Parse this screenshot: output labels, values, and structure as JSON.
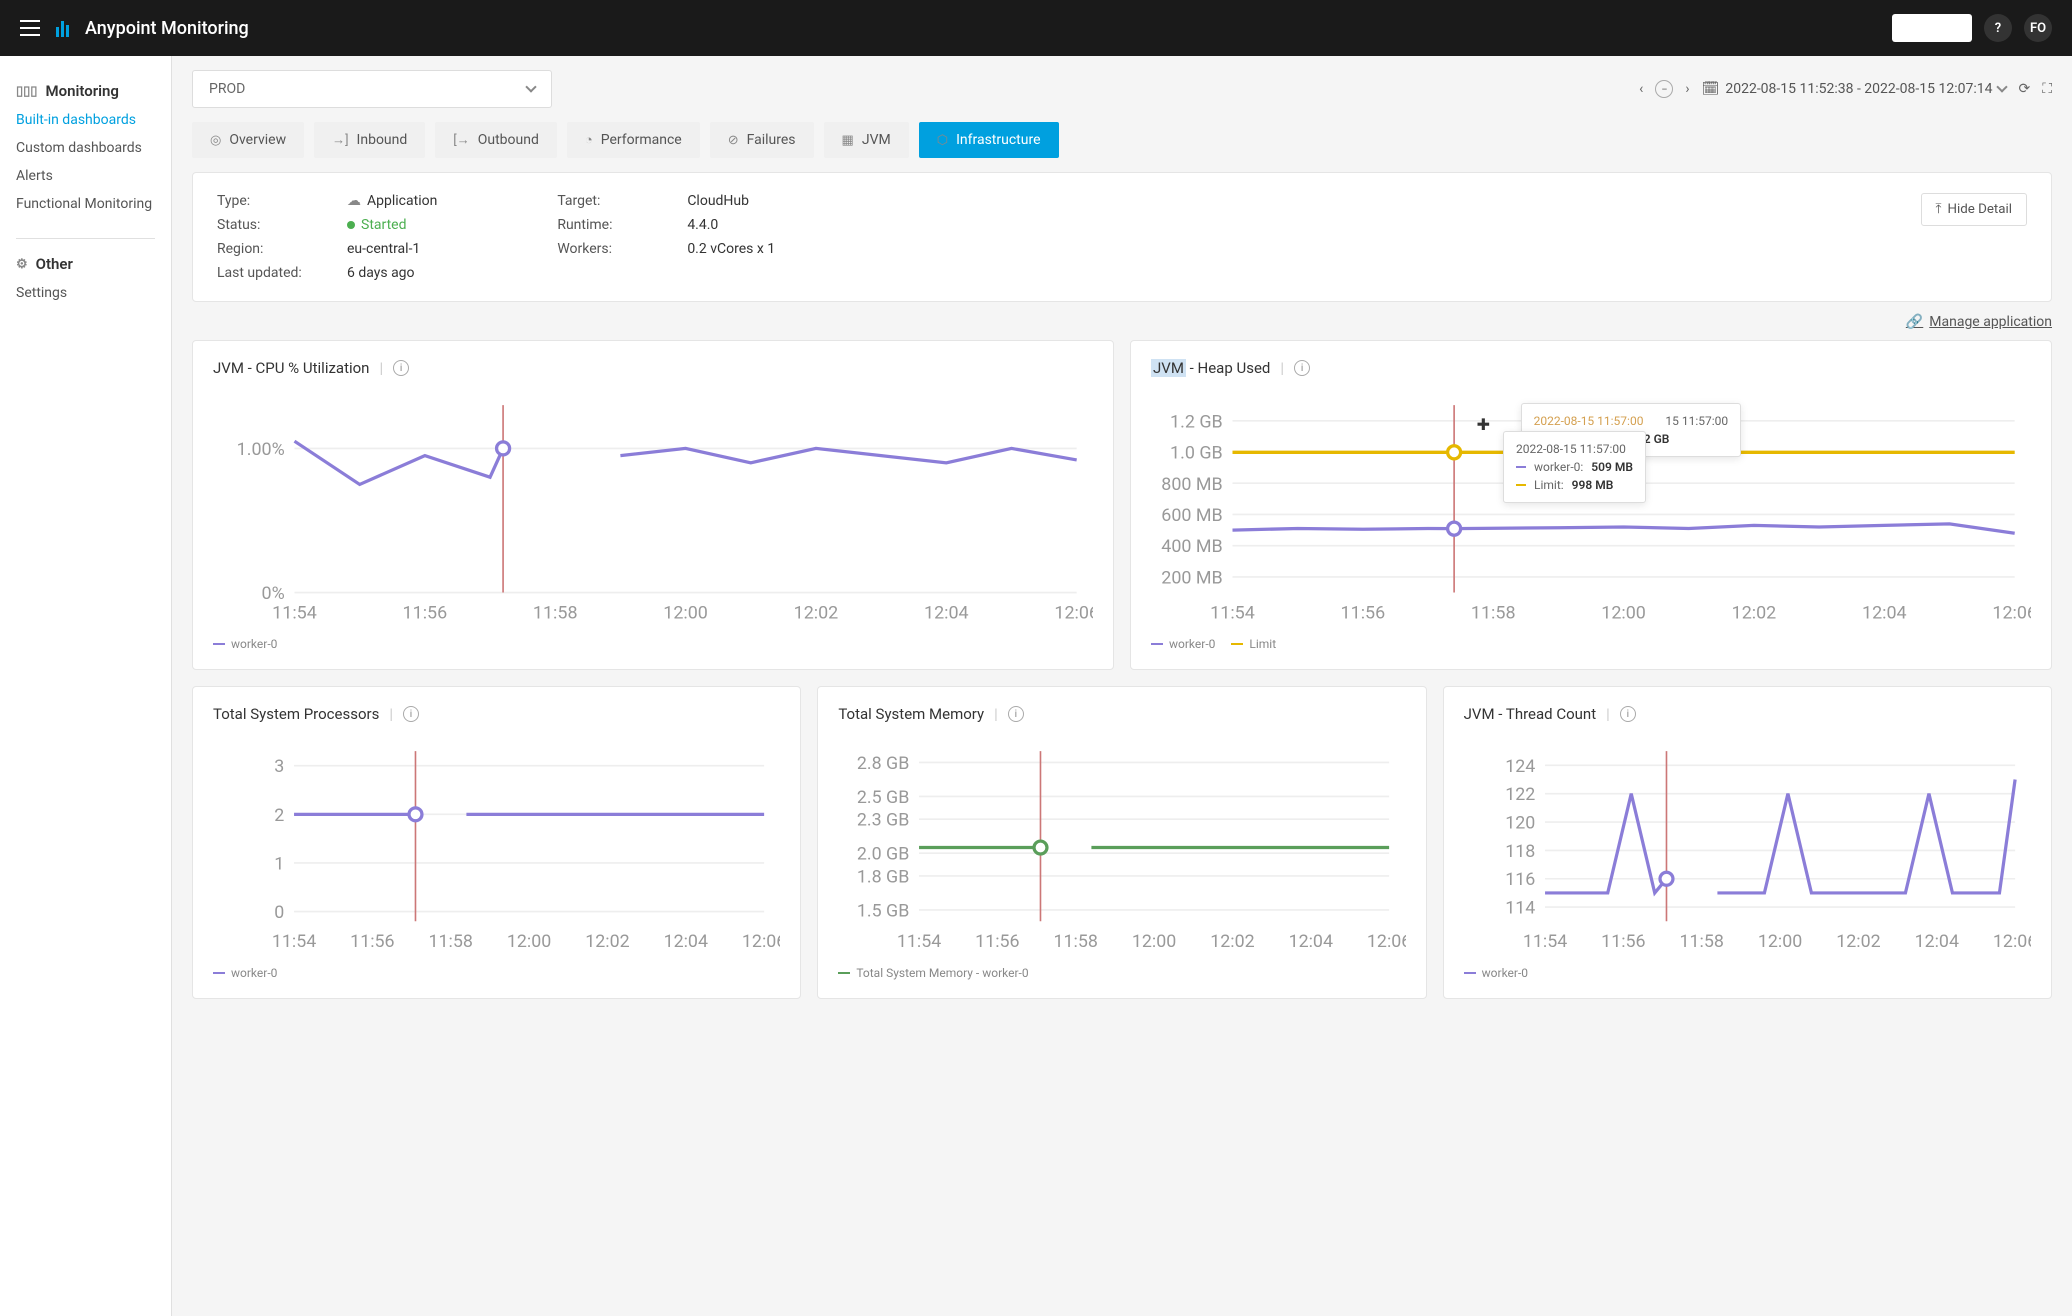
{
  "header": {
    "title": "Anypoint Monitoring",
    "help": "?",
    "user": "FO"
  },
  "sidebar": {
    "monitoring_label": "Monitoring",
    "items": [
      "Built-in dashboards",
      "Custom dashboards",
      "Alerts",
      "Functional Monitoring"
    ],
    "other_label": "Other",
    "other_items": [
      "Settings"
    ]
  },
  "toolbar": {
    "env": "PROD",
    "time_range": "2022-08-15 11:52:38 - 2022-08-15 12:07:14"
  },
  "tabs": [
    "Overview",
    "Inbound",
    "Outbound",
    "Performance",
    "Failures",
    "JVM",
    "Infrastructure"
  ],
  "active_tab": 6,
  "info": {
    "left": [
      {
        "label": "Type:",
        "value": "Application",
        "icon": "cloud"
      },
      {
        "label": "Status:",
        "value": "Started",
        "status": true
      },
      {
        "label": "Region:",
        "value": "eu-central-1"
      },
      {
        "label": "Last updated:",
        "value": "6 days ago"
      }
    ],
    "right": [
      {
        "label": "Target:",
        "value": "CloudHub"
      },
      {
        "label": "Runtime:",
        "value": "4.4.0"
      },
      {
        "label": "Workers:",
        "value": "0.2 vCores x 1"
      }
    ],
    "hide_detail": "Hide Detail"
  },
  "manage_link": "Manage application",
  "colors": {
    "purple": "#8b7dd8",
    "yellow": "#e6b800",
    "green": "#5a9e5a",
    "grid": "#eeeeee",
    "cursor": "#cc7766",
    "text": "#999999"
  },
  "charts": {
    "cpu": {
      "title": "JVM - CPU % Utilization",
      "y_labels": [
        {
          "v": 0,
          "t": "0%"
        },
        {
          "v": 1,
          "t": "1.00%"
        }
      ],
      "ylim": [
        0,
        1.3
      ],
      "x_ticks": [
        "11:54",
        "11:56",
        "11:58",
        "12:00",
        "12:02",
        "12:04",
        "12:06"
      ],
      "x_count": 7,
      "cursor_x": 1.6,
      "gap_after": 1.6,
      "series": [
        {
          "color": "#8b7dd8",
          "points": [
            [
              0,
              1.05
            ],
            [
              0.5,
              0.75
            ],
            [
              1,
              0.95
            ],
            [
              1.5,
              0.8
            ],
            [
              1.6,
              1.0
            ],
            [
              2.5,
              0.95
            ],
            [
              3,
              1.0
            ],
            [
              3.5,
              0.9
            ],
            [
              4,
              1.0
            ],
            [
              4.5,
              0.95
            ],
            [
              5,
              0.9
            ],
            [
              5.5,
              1.0
            ],
            [
              6,
              0.92
            ]
          ]
        }
      ],
      "legend": [
        {
          "color": "#8b7dd8",
          "label": "worker-0"
        }
      ]
    },
    "heap": {
      "title_prefix": "JVM",
      "title_rest": " - Heap Used",
      "y_labels": [
        {
          "v": 200,
          "t": "200 MB"
        },
        {
          "v": 400,
          "t": "400 MB"
        },
        {
          "v": 600,
          "t": "600 MB"
        },
        {
          "v": 800,
          "t": "800 MB"
        },
        {
          "v": 1000,
          "t": "1.0 GB"
        },
        {
          "v": 1200,
          "t": "1.2 GB"
        }
      ],
      "ylim": [
        100,
        1300
      ],
      "x_ticks": [
        "11:54",
        "11:56",
        "11:58",
        "12:00",
        "12:02",
        "12:04",
        "12:06"
      ],
      "x_count": 7,
      "cursor_x": 1.7,
      "series": [
        {
          "color": "#8b7dd8",
          "points": [
            [
              0,
              500
            ],
            [
              0.5,
              510
            ],
            [
              1,
              505
            ],
            [
              1.5,
              510
            ],
            [
              1.7,
              509
            ],
            [
              2.5,
              515
            ],
            [
              3,
              520
            ],
            [
              3.5,
              510
            ],
            [
              4,
              530
            ],
            [
              4.5,
              520
            ],
            [
              5,
              530
            ],
            [
              5.5,
              540
            ],
            [
              6,
              480
            ]
          ]
        },
        {
          "color": "#e6b800",
          "points": [
            [
              0,
              998
            ],
            [
              1.7,
              998
            ],
            [
              2.5,
              998
            ],
            [
              6,
              998
            ]
          ]
        }
      ],
      "legend": [
        {
          "color": "#8b7dd8",
          "label": "worker-0"
        },
        {
          "color": "#e6b800",
          "label": "Limit"
        }
      ],
      "tooltip1": {
        "header": "2022-08-15 11:57:00",
        "tail": "15 11:57:00",
        "row": {
          "label": "y - worker-0:",
          "value": "2.052 GB"
        }
      },
      "tooltip2": {
        "header": "2022-08-15 11:57:00",
        "rows": [
          {
            "color": "#8b7dd8",
            "label": "worker-0:",
            "value": "509 MB"
          },
          {
            "color": "#e6b800",
            "label": "Limit:",
            "value": "998 MB"
          }
        ]
      }
    },
    "processors": {
      "title": "Total System Processors",
      "y_labels": [
        {
          "v": 0,
          "t": "0"
        },
        {
          "v": 1,
          "t": "1"
        },
        {
          "v": 2,
          "t": "2"
        },
        {
          "v": 3,
          "t": "3"
        }
      ],
      "ylim": [
        -0.2,
        3.3
      ],
      "x_ticks": [
        "11:54",
        "11:56",
        "11:58",
        "12:00",
        "12:02",
        "12:04",
        "12:06"
      ],
      "x_count": 7,
      "cursor_x": 1.55,
      "gap_after": 1.55,
      "series": [
        {
          "color": "#8b7dd8",
          "points": [
            [
              0,
              2
            ],
            [
              1.55,
              2
            ],
            [
              2.2,
              2
            ],
            [
              6,
              2
            ]
          ]
        }
      ],
      "legend": [
        {
          "color": "#8b7dd8",
          "label": "worker-0"
        }
      ]
    },
    "memory": {
      "title": "Total System Memory",
      "y_labels": [
        {
          "v": 1.5,
          "t": "1.5 GB"
        },
        {
          "v": 1.8,
          "t": "1.8 GB"
        },
        {
          "v": 2.0,
          "t": "2.0 GB"
        },
        {
          "v": 2.3,
          "t": "2.3 GB"
        },
        {
          "v": 2.5,
          "t": "2.5 GB"
        },
        {
          "v": 2.8,
          "t": "2.8 GB"
        }
      ],
      "ylim": [
        1.4,
        2.9
      ],
      "x_ticks": [
        "11:54",
        "11:56",
        "11:58",
        "12:00",
        "12:02",
        "12:04",
        "12:06"
      ],
      "x_count": 7,
      "cursor_x": 1.55,
      "gap_after": 1.55,
      "series": [
        {
          "color": "#5a9e5a",
          "points": [
            [
              0,
              2.05
            ],
            [
              1.55,
              2.05
            ],
            [
              2.2,
              2.05
            ],
            [
              6,
              2.05
            ]
          ]
        }
      ],
      "legend": [
        {
          "color": "#5a9e5a",
          "label": "Total System Memory - worker-0"
        }
      ]
    },
    "threads": {
      "title": "JVM - Thread Count",
      "y_labels": [
        {
          "v": 114,
          "t": "114"
        },
        {
          "v": 116,
          "t": "116"
        },
        {
          "v": 118,
          "t": "118"
        },
        {
          "v": 120,
          "t": "120"
        },
        {
          "v": 122,
          "t": "122"
        },
        {
          "v": 124,
          "t": "124"
        }
      ],
      "ylim": [
        113,
        125
      ],
      "x_ticks": [
        "11:54",
        "11:56",
        "11:58",
        "12:00",
        "12:02",
        "12:04",
        "12:06"
      ],
      "x_count": 7,
      "cursor_x": 1.55,
      "gap_after": 1.55,
      "series": [
        {
          "color": "#8b7dd8",
          "points": [
            [
              0,
              115
            ],
            [
              0.8,
              115
            ],
            [
              1.1,
              122
            ],
            [
              1.4,
              115
            ],
            [
              1.55,
              116
            ],
            [
              2.2,
              115
            ],
            [
              2.8,
              115
            ],
            [
              3.1,
              122
            ],
            [
              3.4,
              115
            ],
            [
              4.0,
              115
            ],
            [
              4.6,
              115
            ],
            [
              4.9,
              122
            ],
            [
              5.2,
              115
            ],
            [
              5.8,
              115
            ],
            [
              6,
              123
            ]
          ]
        }
      ],
      "legend": [
        {
          "color": "#8b7dd8",
          "label": "worker-0"
        }
      ]
    }
  }
}
